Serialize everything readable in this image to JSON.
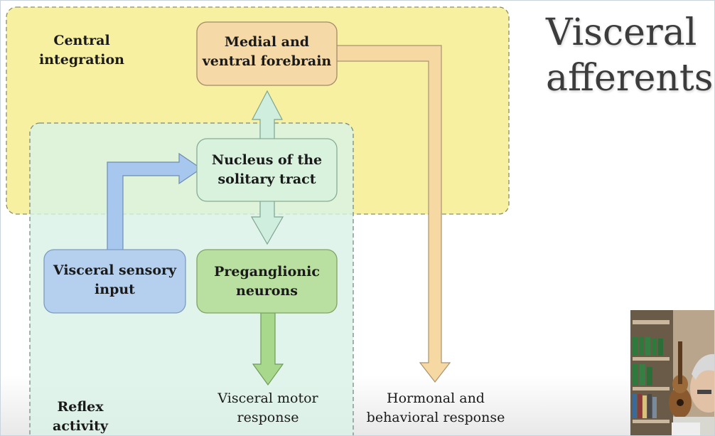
{
  "slide": {
    "title": "Visceral\nafferents"
  },
  "regions": {
    "central_integration": "Central\nintegration",
    "reflex_activity": "Reflex\nactivity"
  },
  "boxes": {
    "forebrain": "Medial and\nventral forebrain",
    "nucleus": "Nucleus of the\nsolitary tract",
    "sensory": "Visceral sensory\ninput",
    "preganglionic": "Preganglionic\nneurons"
  },
  "outputs": {
    "motor": "Visceral motor\nresponse",
    "hormonal": "Hormonal and\nbehavioral response"
  },
  "colors": {
    "central_region": "#f6f0a0",
    "reflex_region": "#d9f1e6",
    "forebrain_box": "#f5d9a6",
    "nucleus_box": "#d8f2dd",
    "sensory_box": "#b5d0ef",
    "preganglionic_box": "#b9e0a0",
    "orange_arrow": "#f6d8a2",
    "green_arrow": "#a8d88c",
    "blue_arrow": "#a7c7ee",
    "teal_arrow": "#cfeedd"
  }
}
